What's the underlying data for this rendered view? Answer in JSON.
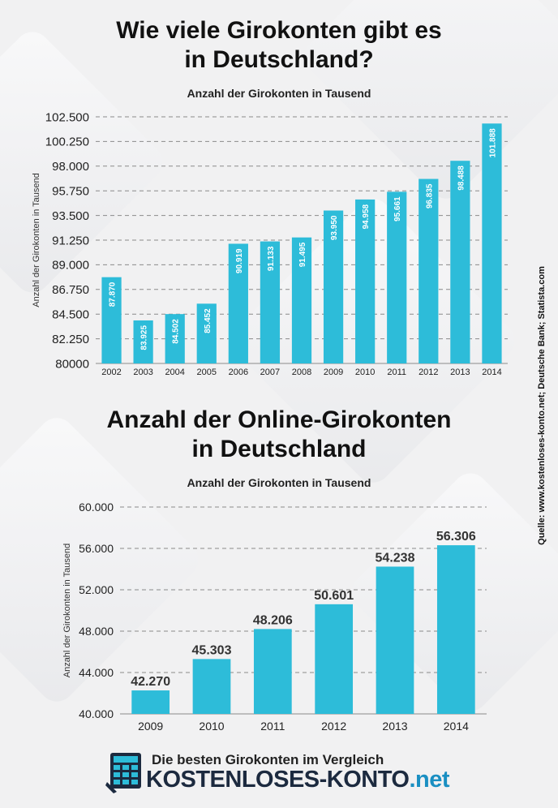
{
  "title": "Wie viele Girokonten gibt es\nin Deutschland?",
  "source": "Quelle: www.kostenloses-konto.net; Deutsche Bank; Statista.com",
  "footer": {
    "tagline": "Die besten Girokonten im Vergleich",
    "brand": "KOSTENLOSES-KONTO",
    "tld": ".net"
  },
  "colors": {
    "bar": "#2dbcd9",
    "grid": "#8a8a8a",
    "text": "#333333"
  },
  "chart_data": [
    {
      "type": "bar",
      "subtitle": "Anzahl der Girokonten in Tausend",
      "ylabel": "Anzahl der Girokonten in Tausend",
      "xlabel": "",
      "categories": [
        "2002",
        "2003",
        "2004",
        "2005",
        "2006",
        "2007",
        "2008",
        "2009",
        "2010",
        "2011",
        "2012",
        "2013",
        "2014"
      ],
      "values": [
        87870,
        83925,
        84502,
        85452,
        90919,
        91133,
        91495,
        93950,
        94958,
        95661,
        96835,
        98488,
        101888
      ],
      "value_labels": [
        "87.870",
        "83.925",
        "84.502",
        "85.452",
        "90.919",
        "91.133",
        "91.495",
        "93.950",
        "94.958",
        "95.661",
        "96.835",
        "98.488",
        "101.888"
      ],
      "yticks": [
        80000,
        82250,
        84500,
        86750,
        89000,
        91250,
        93500,
        95750,
        98000,
        100250,
        102500
      ],
      "ytick_labels": [
        "80000",
        "82.250",
        "84.500",
        "86.750",
        "89.000",
        "91.250",
        "93.500",
        "95.750",
        "98.000",
        "100.250",
        "102.500"
      ],
      "ylim": [
        80000,
        102500
      ],
      "grid": true,
      "label_position": "inside-vertical"
    },
    {
      "type": "bar",
      "title": "Anzahl der Online-Girokonten\nin Deutschland",
      "subtitle": "Anzahl der Girokonten in Tausend",
      "ylabel": "Anzahl der Girokonten in Tausend",
      "xlabel": "",
      "categories": [
        "2009",
        "2010",
        "2011",
        "2012",
        "2013",
        "2014"
      ],
      "values": [
        42270,
        45303,
        48206,
        50601,
        54238,
        56306
      ],
      "value_labels": [
        "42.270",
        "45.303",
        "48.206",
        "50.601",
        "54.238",
        "56.306"
      ],
      "yticks": [
        40000,
        44000,
        48000,
        52000,
        56000,
        60000
      ],
      "ytick_labels": [
        "40.000",
        "44.000",
        "48.000",
        "52.000",
        "56.000",
        "60.000"
      ],
      "ylim": [
        40000,
        60000
      ],
      "grid": true,
      "label_position": "above"
    }
  ]
}
